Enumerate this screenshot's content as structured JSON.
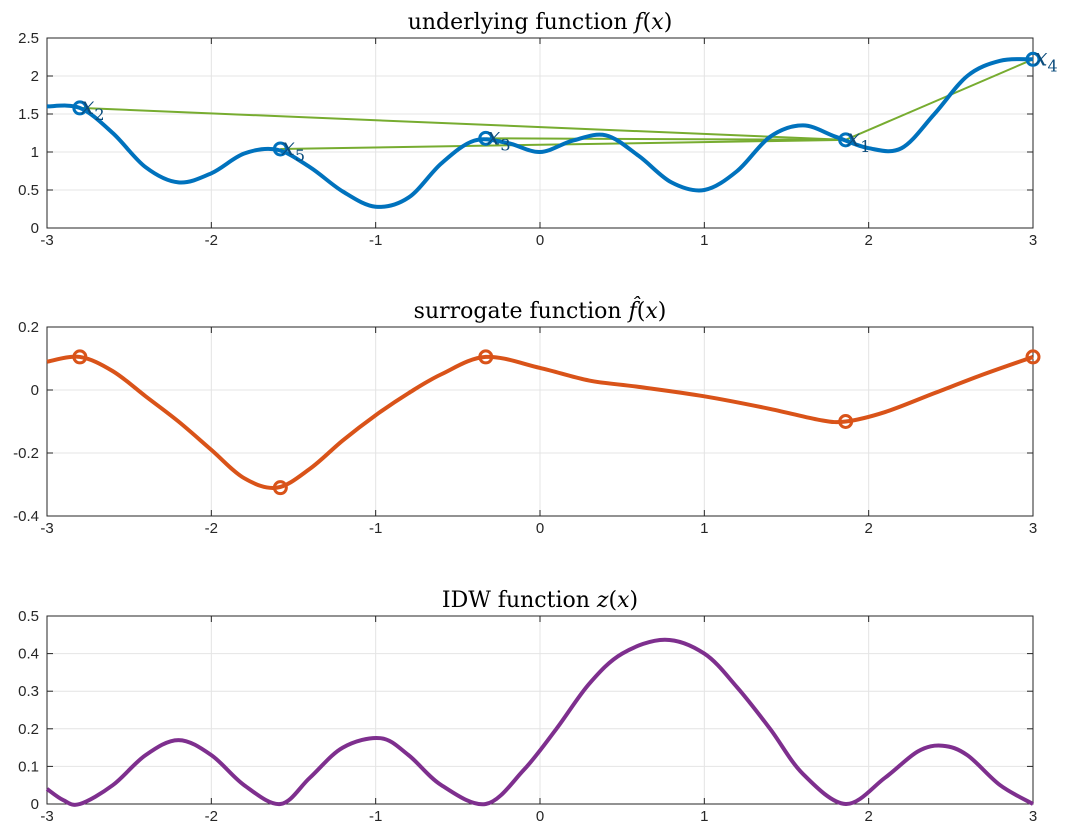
{
  "chart_data": [
    {
      "type": "line",
      "title": "underlying function f(x)",
      "xlim": [
        -3,
        3
      ],
      "ylim": [
        0,
        2.5
      ],
      "xticks": [
        -3,
        -2,
        -1,
        0,
        1,
        2,
        3
      ],
      "yticks": [
        0,
        0.5,
        1,
        1.5,
        2,
        2.5
      ],
      "grid": true,
      "series": [
        {
          "color": "#0072bd",
          "x": [
            -3,
            -2.8,
            -2.6,
            -2.4,
            -2.2,
            -2.0,
            -1.8,
            -1.6,
            -1.4,
            -1.2,
            -1.0,
            -0.8,
            -0.6,
            -0.4,
            -0.2,
            0.0,
            0.2,
            0.4,
            0.6,
            0.8,
            1.0,
            1.2,
            1.4,
            1.6,
            1.8,
            2.0,
            2.2,
            2.4,
            2.6,
            2.8,
            3.0
          ],
          "y": [
            1.6,
            1.58,
            1.25,
            0.8,
            0.6,
            0.72,
            0.98,
            1.03,
            0.8,
            0.48,
            0.28,
            0.4,
            0.85,
            1.15,
            1.12,
            1.0,
            1.15,
            1.22,
            0.95,
            0.6,
            0.5,
            0.75,
            1.2,
            1.35,
            1.2,
            1.05,
            1.05,
            1.5,
            2.0,
            2.2,
            2.22
          ]
        }
      ],
      "samples": [
        {
          "label": "x",
          "sub": "1",
          "x": 1.86,
          "y": 1.16
        },
        {
          "label": "x",
          "sub": "2",
          "x": -2.8,
          "y": 1.58
        },
        {
          "label": "x",
          "sub": "3",
          "x": -0.33,
          "y": 1.18
        },
        {
          "label": "x",
          "sub": "4",
          "x": 3.0,
          "y": 2.22
        },
        {
          "label": "x",
          "sub": "5",
          "x": -1.58,
          "y": 1.04
        }
      ],
      "sample_color": "#0072bd",
      "connector_color": "#77ac30"
    },
    {
      "type": "line",
      "title": "surrogate function f̂(x)",
      "xlim": [
        -3,
        3
      ],
      "ylim": [
        -0.4,
        0.2
      ],
      "xticks": [
        -3,
        -2,
        -1,
        0,
        1,
        2,
        3
      ],
      "yticks": [
        -0.4,
        -0.2,
        0,
        0.2
      ],
      "grid": true,
      "series": [
        {
          "color": "#d95319",
          "x": [
            -3,
            -2.8,
            -2.6,
            -2.4,
            -2.2,
            -2.0,
            -1.8,
            -1.6,
            -1.4,
            -1.2,
            -1.0,
            -0.8,
            -0.6,
            -0.33,
            0.0,
            0.3,
            0.6,
            1.0,
            1.4,
            1.7,
            1.86,
            2.1,
            2.4,
            2.7,
            3.0
          ],
          "y": [
            0.09,
            0.105,
            0.06,
            -0.02,
            -0.1,
            -0.19,
            -0.28,
            -0.31,
            -0.25,
            -0.16,
            -0.08,
            -0.01,
            0.05,
            0.105,
            0.07,
            0.03,
            0.01,
            -0.02,
            -0.06,
            -0.095,
            -0.1,
            -0.07,
            -0.01,
            0.05,
            0.105
          ]
        }
      ],
      "samples": [
        {
          "x": -2.8,
          "y": 0.105
        },
        {
          "x": -1.58,
          "y": -0.31
        },
        {
          "x": -0.33,
          "y": 0.105
        },
        {
          "x": 1.86,
          "y": -0.1
        },
        {
          "x": 3.0,
          "y": 0.105
        }
      ],
      "sample_color": "#d95319"
    },
    {
      "type": "line",
      "title": "IDW function z(x)",
      "xlim": [
        -3,
        3
      ],
      "ylim": [
        0,
        0.5
      ],
      "xticks": [
        -3,
        -2,
        -1,
        0,
        1,
        2,
        3
      ],
      "yticks": [
        0,
        0.1,
        0.2,
        0.3,
        0.4,
        0.5
      ],
      "grid": true,
      "series": [
        {
          "color": "#7e2f8e",
          "x": [
            -3,
            -2.9,
            -2.8,
            -2.6,
            -2.4,
            -2.2,
            -2.0,
            -1.8,
            -1.58,
            -1.4,
            -1.2,
            -0.97,
            -0.8,
            -0.6,
            -0.33,
            -0.1,
            0.1,
            0.3,
            0.5,
            0.76,
            1.0,
            1.2,
            1.4,
            1.6,
            1.86,
            2.1,
            2.3,
            2.45,
            2.6,
            2.8,
            3.0
          ],
          "y": [
            0.04,
            0.01,
            0.0,
            0.05,
            0.13,
            0.17,
            0.13,
            0.05,
            0.0,
            0.07,
            0.15,
            0.175,
            0.13,
            0.05,
            0.0,
            0.09,
            0.2,
            0.32,
            0.4,
            0.437,
            0.4,
            0.31,
            0.2,
            0.08,
            0.0,
            0.07,
            0.14,
            0.155,
            0.13,
            0.05,
            0.0
          ]
        }
      ]
    }
  ]
}
